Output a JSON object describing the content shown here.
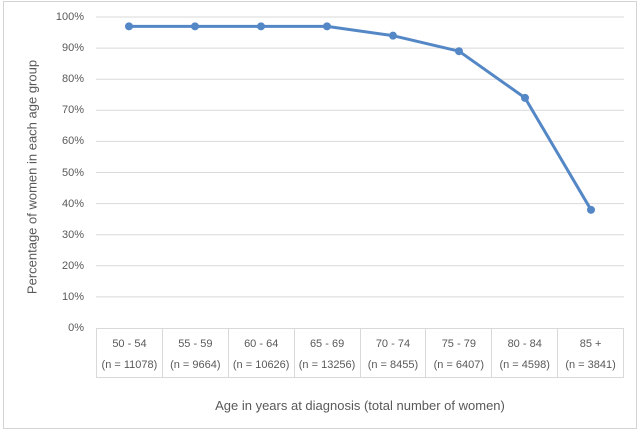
{
  "chart_data": {
    "type": "line",
    "title": "",
    "xlabel": "Age in years at diagnosis (total number of women)",
    "ylabel": "Percentage of women in each age group",
    "categories": [
      "50 - 54",
      "55 - 59",
      "60 - 64",
      "65 - 69",
      "70 - 74",
      "75 - 79",
      "80 - 84",
      "85 +"
    ],
    "category_sublabels": [
      "(n = 11078)",
      "(n = 9664)",
      "(n = 10626)",
      "(n = 13256)",
      "(n = 8455)",
      "(n = 6407)",
      "(n = 4598)",
      "(n = 3841)"
    ],
    "series": [
      {
        "name": "Percentage of women in each age group",
        "values": [
          97,
          97,
          97,
          97,
          94,
          89,
          74,
          38
        ]
      }
    ],
    "ylim": [
      0,
      100
    ],
    "yticks": [
      {
        "value": 100,
        "label": "100%"
      },
      {
        "value": 90,
        "label": "90%"
      },
      {
        "value": 80,
        "label": "80%"
      },
      {
        "value": 70,
        "label": "70%"
      },
      {
        "value": 60,
        "label": "60%"
      },
      {
        "value": 50,
        "label": "50%"
      },
      {
        "value": 40,
        "label": "40%"
      },
      {
        "value": 30,
        "label": "30%"
      },
      {
        "value": 20,
        "label": "20%"
      },
      {
        "value": 10,
        "label": "10%"
      },
      {
        "value": 0,
        "label": "0%"
      }
    ],
    "grid": "horizontal",
    "legend": "none",
    "marker": "circle",
    "colors": {
      "line": "#5487c6",
      "marker": "#5487c6",
      "gridline": "#d9d9d9",
      "axis_table_border": "#d9d9d9",
      "text": "#595959",
      "figure_border": "#d4d4d4",
      "background": "#ffffff"
    }
  }
}
